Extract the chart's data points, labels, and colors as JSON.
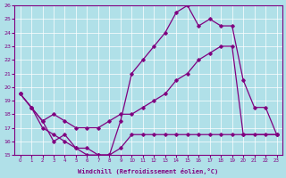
{
  "xlabel": "Windchill (Refroidissement éolien,°C)",
  "bg_color": "#b0e0e8",
  "line_color": "#800080",
  "xlim": [
    -0.5,
    23.5
  ],
  "ylim": [
    15,
    26
  ],
  "line1_x": [
    0,
    1,
    2,
    3,
    4,
    5,
    6,
    7,
    8,
    9,
    10,
    11,
    12,
    13,
    14,
    15,
    16,
    17,
    18,
    19,
    20,
    21,
    22,
    23
  ],
  "line1_y": [
    19.5,
    18.5,
    17.5,
    16.0,
    16.5,
    15.5,
    15.0,
    15.0,
    15.0,
    17.5,
    21.0,
    22.0,
    23.0,
    24.0,
    25.5,
    26.0,
    24.5,
    25.0,
    24.5,
    24.5,
    20.5,
    18.5,
    18.5,
    16.5
  ],
  "line2_x": [
    0,
    1,
    2,
    3,
    4,
    5,
    6,
    7,
    8,
    9,
    10,
    11,
    12,
    13,
    14,
    15,
    16,
    17,
    18,
    19,
    20,
    23
  ],
  "line2_y": [
    19.5,
    18.5,
    17.5,
    18.0,
    17.5,
    17.0,
    17.0,
    17.0,
    17.5,
    18.0,
    18.0,
    18.5,
    19.0,
    19.5,
    20.5,
    21.0,
    22.0,
    22.5,
    23.0,
    23.0,
    16.5,
    16.5
  ],
  "line3_x": [
    0,
    1,
    2,
    3,
    4,
    5,
    6,
    7,
    8,
    9,
    10,
    11,
    12,
    13,
    14,
    15,
    16,
    17,
    18,
    19,
    20,
    21,
    22,
    23
  ],
  "line3_y": [
    19.5,
    18.5,
    17.0,
    16.5,
    16.0,
    15.5,
    15.5,
    15.0,
    15.0,
    15.5,
    16.5,
    16.5,
    16.5,
    16.5,
    16.5,
    16.5,
    16.5,
    16.5,
    16.5,
    16.5,
    16.5,
    16.5,
    16.5,
    16.5
  ]
}
